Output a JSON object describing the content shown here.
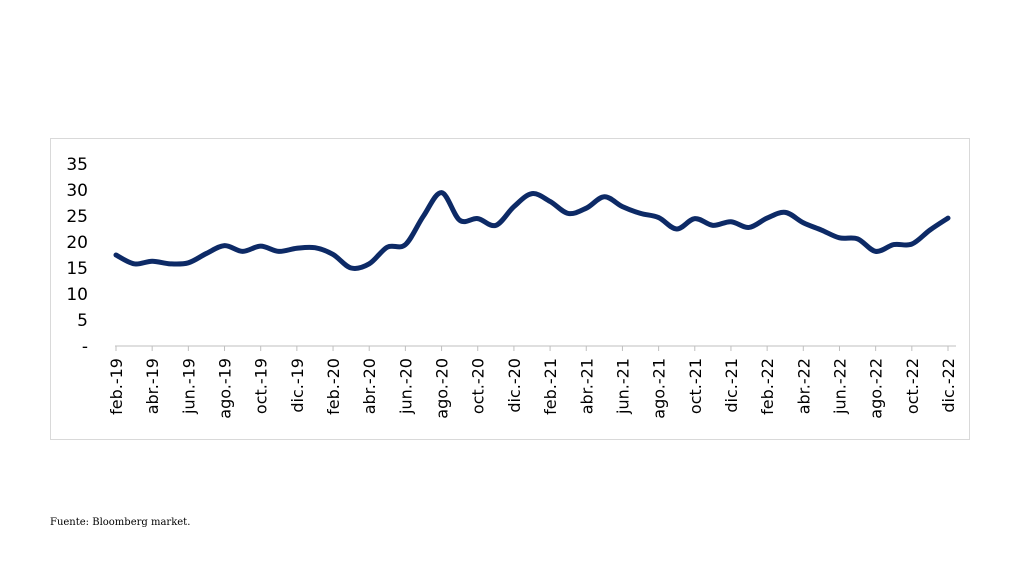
{
  "chart_data": {
    "type": "line",
    "title": "",
    "xlabel": "",
    "ylabel": "",
    "ylim": [
      0,
      35
    ],
    "yticks": [
      {
        "value": 0,
        "label": "-"
      },
      {
        "value": 5,
        "label": "5"
      },
      {
        "value": 10,
        "label": "10"
      },
      {
        "value": 15,
        "label": "15"
      },
      {
        "value": 20,
        "label": "20"
      },
      {
        "value": 25,
        "label": "25"
      },
      {
        "value": 30,
        "label": "30"
      },
      {
        "value": 35,
        "label": "35"
      }
    ],
    "grid": false,
    "legend": "none",
    "line_color": "#0d2a66",
    "categories": [
      "feb.-19",
      "mar.-19",
      "abr.-19",
      "may.-19",
      "jun.-19",
      "jul.-19",
      "ago.-19",
      "sep.-19",
      "oct.-19",
      "nov.-19",
      "dic.-19",
      "ene.-20",
      "feb.-20",
      "mar.-20",
      "abr.-20",
      "may.-20",
      "jun.-20",
      "jul.-20",
      "ago.-20",
      "sep.-20",
      "oct.-20",
      "nov.-20",
      "dic.-20",
      "ene.-21",
      "feb.-21",
      "mar.-21",
      "abr.-21",
      "may.-21",
      "jun.-21",
      "jul.-21",
      "ago.-21",
      "sep.-21",
      "oct.-21",
      "nov.-21",
      "dic.-21",
      "ene.-22",
      "feb.-22",
      "mar.-22",
      "abr.-22",
      "may.-22",
      "jun.-22",
      "jul.-22",
      "ago.-22",
      "sep.-22",
      "oct.-22",
      "nov.-22",
      "dic.-22"
    ],
    "tick_labels": [
      "feb.-19",
      "abr.-19",
      "jun.-19",
      "ago.-19",
      "oct.-19",
      "dic.-19",
      "feb.-20",
      "abr.-20",
      "jun.-20",
      "ago.-20",
      "oct.-20",
      "dic.-20",
      "feb.-21",
      "abr.-21",
      "jun.-21",
      "ago.-21",
      "oct.-21",
      "dic.-21",
      "feb.-22",
      "abr.-22",
      "jun.-22",
      "ago.-22",
      "oct.-22",
      "dic.-22"
    ],
    "series": [
      {
        "values": [
          17.5,
          15.8,
          16.3,
          15.8,
          16.0,
          17.8,
          19.3,
          18.2,
          19.2,
          18.2,
          18.8,
          18.9,
          17.6,
          15.0,
          15.8,
          19.0,
          19.5,
          25.0,
          29.5,
          24.2,
          24.5,
          23.2,
          26.8,
          29.3,
          27.8,
          25.5,
          26.5,
          28.7,
          26.8,
          25.5,
          24.7,
          22.5,
          24.5,
          23.2,
          23.9,
          22.8,
          24.6,
          25.7,
          23.7,
          22.3,
          20.8,
          20.6,
          18.2,
          19.5,
          19.6,
          22.3,
          24.6
        ]
      }
    ]
  },
  "source_note": "Fuente: Bloomberg market."
}
